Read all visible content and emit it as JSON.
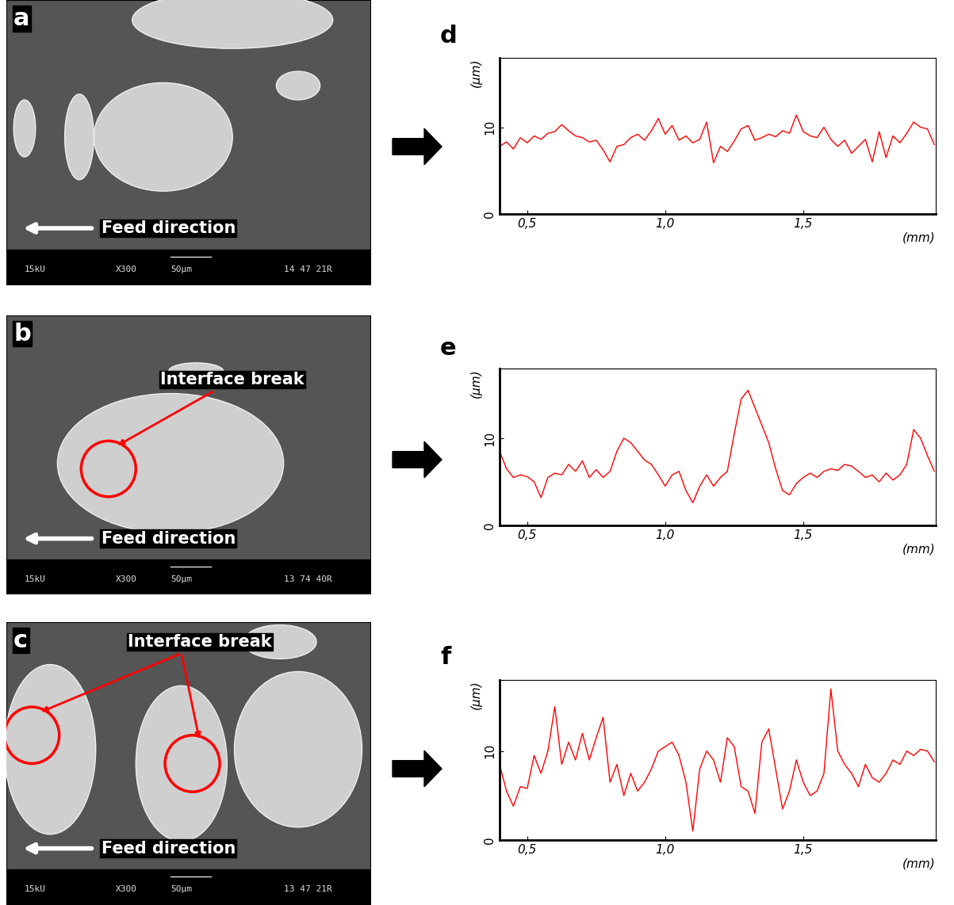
{
  "chart_data": [
    {
      "panel": "d",
      "type": "line",
      "color": "#ff0000",
      "x_label": "(mm)",
      "y_label": "(µm)",
      "x": [
        0.4,
        0.425,
        0.45,
        0.475,
        0.5,
        0.525,
        0.55,
        0.575,
        0.6,
        0.625,
        0.65,
        0.675,
        0.7,
        0.725,
        0.75,
        0.775,
        0.8,
        0.825,
        0.85,
        0.875,
        0.9,
        0.925,
        0.95,
        0.975,
        1.0,
        1.025,
        1.05,
        1.075,
        1.1,
        1.125,
        1.15,
        1.175,
        1.2,
        1.225,
        1.25,
        1.275,
        1.3,
        1.325,
        1.35,
        1.375,
        1.4,
        1.425,
        1.45,
        1.475,
        1.5,
        1.525,
        1.55,
        1.575,
        1.6,
        1.625,
        1.65,
        1.675,
        1.7,
        1.725,
        1.75,
        1.775,
        1.8,
        1.825,
        1.85,
        1.875,
        1.9,
        1.925,
        1.95,
        1.975
      ],
      "values": [
        7.8,
        8.3,
        7.5,
        8.8,
        8.2,
        9.0,
        8.6,
        9.3,
        9.5,
        10.3,
        9.6,
        9.0,
        8.8,
        8.3,
        8.5,
        7.4,
        6.0,
        7.8,
        8.0,
        8.8,
        9.2,
        8.5,
        9.6,
        11.0,
        9.2,
        10.2,
        8.5,
        9.0,
        8.2,
        8.6,
        10.6,
        5.9,
        7.8,
        7.2,
        8.4,
        9.8,
        10.2,
        8.5,
        8.8,
        9.2,
        8.9,
        9.6,
        9.3,
        11.4,
        9.5,
        9.0,
        8.8,
        10.0,
        8.6,
        7.8,
        8.5,
        7.0,
        7.8,
        8.6,
        6.0,
        9.5,
        6.5,
        9.0,
        8.2,
        9.3,
        10.6,
        10.0,
        9.8,
        8.0
      ],
      "xlim": [
        0.4,
        1.98
      ],
      "ylim": [
        0,
        18
      ],
      "xticks": [
        {
          "value": 0.5,
          "label": "0,5"
        },
        {
          "value": 1.0,
          "label": "1,0"
        },
        {
          "value": 1.5,
          "label": "1,5"
        }
      ],
      "yticks": [
        0,
        10
      ]
    },
    {
      "panel": "e",
      "type": "line",
      "color": "#ff0000",
      "x_label": "(mm)",
      "y_label": "(µm)",
      "x": [
        0.4,
        0.425,
        0.45,
        0.475,
        0.5,
        0.525,
        0.55,
        0.575,
        0.6,
        0.625,
        0.65,
        0.675,
        0.7,
        0.725,
        0.75,
        0.775,
        0.8,
        0.825,
        0.85,
        0.875,
        0.9,
        0.925,
        0.95,
        0.975,
        1.0,
        1.025,
        1.05,
        1.075,
        1.1,
        1.125,
        1.15,
        1.175,
        1.2,
        1.225,
        1.25,
        1.275,
        1.3,
        1.325,
        1.35,
        1.375,
        1.4,
        1.425,
        1.45,
        1.475,
        1.5,
        1.525,
        1.55,
        1.575,
        1.6,
        1.625,
        1.65,
        1.675,
        1.7,
        1.725,
        1.75,
        1.775,
        1.8,
        1.825,
        1.85,
        1.875,
        1.9,
        1.925,
        1.95,
        1.975
      ],
      "values": [
        8.5,
        6.5,
        5.5,
        5.8,
        5.6,
        5.0,
        3.2,
        5.5,
        6.0,
        5.8,
        7.0,
        6.2,
        7.4,
        5.5,
        6.4,
        5.5,
        6.2,
        8.5,
        10.0,
        9.5,
        8.5,
        7.5,
        7.0,
        5.8,
        4.5,
        5.8,
        6.2,
        4.0,
        2.6,
        4.5,
        5.8,
        4.5,
        5.5,
        6.2,
        10.5,
        14.5,
        15.5,
        13.5,
        11.5,
        9.5,
        6.5,
        4.0,
        3.5,
        4.8,
        5.5,
        6.0,
        5.5,
        6.2,
        6.5,
        6.3,
        7.0,
        6.8,
        6.2,
        5.5,
        5.8,
        5.0,
        6.0,
        5.2,
        5.8,
        7.0,
        11.0,
        10.0,
        8.0,
        6.2
      ],
      "xlim": [
        0.4,
        1.98
      ],
      "ylim": [
        0,
        18
      ],
      "xticks": [
        {
          "value": 0.5,
          "label": "0,5"
        },
        {
          "value": 1.0,
          "label": "1,0"
        },
        {
          "value": 1.5,
          "label": "1,5"
        }
      ],
      "yticks": [
        0,
        10
      ]
    },
    {
      "panel": "f",
      "type": "line",
      "color": "#ff0000",
      "x_label": "(mm)",
      "y_label": "(µm)",
      "x": [
        0.4,
        0.425,
        0.45,
        0.475,
        0.5,
        0.525,
        0.55,
        0.575,
        0.6,
        0.625,
        0.65,
        0.675,
        0.7,
        0.725,
        0.75,
        0.775,
        0.8,
        0.825,
        0.85,
        0.875,
        0.9,
        0.925,
        0.95,
        0.975,
        1.0,
        1.025,
        1.05,
        1.075,
        1.1,
        1.125,
        1.15,
        1.175,
        1.2,
        1.225,
        1.25,
        1.275,
        1.3,
        1.325,
        1.35,
        1.375,
        1.4,
        1.425,
        1.45,
        1.475,
        1.5,
        1.525,
        1.55,
        1.575,
        1.6,
        1.625,
        1.65,
        1.675,
        1.7,
        1.725,
        1.75,
        1.775,
        1.8,
        1.825,
        1.85,
        1.875,
        1.9,
        1.925,
        1.95,
        1.975
      ],
      "values": [
        8.5,
        5.5,
        3.8,
        6.0,
        5.8,
        9.5,
        7.5,
        10.0,
        15.0,
        8.5,
        11.0,
        9.0,
        12.0,
        9.0,
        11.5,
        13.8,
        6.5,
        8.5,
        5.0,
        7.5,
        5.5,
        6.5,
        8.0,
        10.0,
        10.5,
        11.0,
        9.5,
        6.5,
        1.0,
        8.0,
        10.0,
        9.0,
        6.5,
        11.5,
        10.5,
        6.0,
        5.5,
        3.0,
        11.0,
        12.5,
        8.0,
        3.5,
        5.5,
        9.0,
        6.5,
        5.0,
        5.5,
        7.5,
        17.0,
        10.0,
        8.5,
        7.5,
        6.0,
        8.5,
        7.0,
        6.5,
        7.5,
        9.0,
        8.5,
        10.0,
        9.5,
        10.2,
        10.0,
        8.8
      ],
      "xlim": [
        0.4,
        1.98
      ],
      "ylim": [
        0,
        18
      ],
      "xticks": [
        {
          "value": 0.5,
          "label": "0,5"
        },
        {
          "value": 1.0,
          "label": "1,0"
        },
        {
          "value": 1.5,
          "label": "1,5"
        }
      ],
      "yticks": [
        0,
        10
      ]
    }
  ],
  "images": [
    {
      "panel": "a",
      "info_bar": [
        "15kU",
        "X300",
        "50µm",
        "14 47 21R"
      ],
      "feed_label": "Feed direction"
    },
    {
      "panel": "b",
      "info_bar": [
        "15kU",
        "X300",
        "50µm",
        "13 74 40R"
      ],
      "feed_label": "Feed direction",
      "annotation": "Interface break"
    },
    {
      "panel": "c",
      "info_bar": [
        "15kU",
        "X300",
        "50µm",
        "13 47 21R"
      ],
      "feed_label": "Feed direction",
      "annotation": "Interface break"
    }
  ]
}
